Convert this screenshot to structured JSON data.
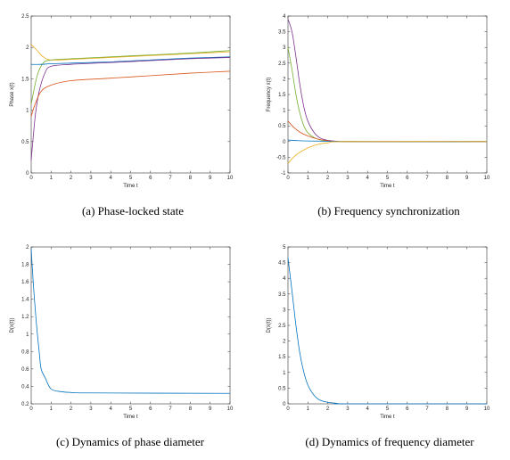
{
  "chart_data": [
    {
      "type": "line",
      "panel_id": "a",
      "caption": "(a)  Phase-locked state",
      "xlabel": "Time t",
      "ylabel": "Phase x(t)",
      "xlim": [
        0,
        10
      ],
      "ylim": [
        0,
        2.5
      ],
      "xticks": [
        "0",
        "1",
        "2",
        "3",
        "4",
        "5",
        "6",
        "7",
        "8",
        "9",
        "10"
      ],
      "yticks": [
        "0",
        "0.5",
        "1",
        "1.5",
        "2",
        "2.5"
      ],
      "grid": false,
      "series": [
        {
          "color": "#edb120",
          "points": [
            [
              0,
              2.05
            ],
            [
              0.3,
              1.95
            ],
            [
              0.6,
              1.85
            ],
            [
              1,
              1.8
            ],
            [
              2,
              1.81
            ],
            [
              4,
              1.84
            ],
            [
              6,
              1.87
            ],
            [
              8,
              1.9
            ],
            [
              10,
              1.93
            ]
          ]
        },
        {
          "color": "#77ac30",
          "points": [
            [
              0,
              1.1
            ],
            [
              0.3,
              1.55
            ],
            [
              0.6,
              1.75
            ],
            [
              1,
              1.8
            ],
            [
              2,
              1.82
            ],
            [
              4,
              1.85
            ],
            [
              6,
              1.88
            ],
            [
              8,
              1.91
            ],
            [
              10,
              1.95
            ]
          ]
        },
        {
          "color": "#0072bd",
          "points": [
            [
              0,
              1.73
            ],
            [
              0.5,
              1.73
            ],
            [
              1,
              1.74
            ],
            [
              2,
              1.75
            ],
            [
              4,
              1.77
            ],
            [
              6,
              1.8
            ],
            [
              8,
              1.83
            ],
            [
              10,
              1.85
            ]
          ]
        },
        {
          "color": "#7e2f8e",
          "points": [
            [
              0,
              0.2
            ],
            [
              0.2,
              0.9
            ],
            [
              0.4,
              1.3
            ],
            [
              0.7,
              1.6
            ],
            [
              1,
              1.7
            ],
            [
              2,
              1.73
            ],
            [
              4,
              1.76
            ],
            [
              6,
              1.79
            ],
            [
              8,
              1.82
            ],
            [
              10,
              1.84
            ]
          ]
        },
        {
          "color": "#d95319",
          "points": [
            [
              0,
              0.9
            ],
            [
              0.2,
              1.1
            ],
            [
              0.5,
              1.3
            ],
            [
              1,
              1.4
            ],
            [
              2,
              1.47
            ],
            [
              4,
              1.51
            ],
            [
              6,
              1.55
            ],
            [
              8,
              1.59
            ],
            [
              10,
              1.62
            ]
          ]
        }
      ]
    },
    {
      "type": "line",
      "panel_id": "b",
      "caption": "(b)  Frequency synchronization",
      "xlabel": "Time t",
      "ylabel": "Frequency ẋ(t)",
      "xlim": [
        0,
        10
      ],
      "ylim": [
        -1,
        4
      ],
      "xticks": [
        "0",
        "1",
        "2",
        "3",
        "4",
        "5",
        "6",
        "7",
        "8",
        "9",
        "10"
      ],
      "yticks": [
        "-1",
        "-0.5",
        "0",
        "0.5",
        "1",
        "1.5",
        "2",
        "2.5",
        "3",
        "3.5",
        "4"
      ],
      "grid": false,
      "series": [
        {
          "color": "#7e2f8e",
          "points": [
            [
              0,
              3.9
            ],
            [
              0.2,
              3.5
            ],
            [
              0.4,
              2.7
            ],
            [
              0.6,
              1.8
            ],
            [
              0.8,
              1.1
            ],
            [
              1,
              0.65
            ],
            [
              1.3,
              0.3
            ],
            [
              1.6,
              0.12
            ],
            [
              2,
              0.04
            ],
            [
              2.5,
              0.01
            ],
            [
              3,
              0
            ],
            [
              10,
              0
            ]
          ]
        },
        {
          "color": "#77ac30",
          "points": [
            [
              0,
              3.0
            ],
            [
              0.2,
              2.3
            ],
            [
              0.4,
              1.5
            ],
            [
              0.6,
              0.9
            ],
            [
              0.8,
              0.5
            ],
            [
              1,
              0.28
            ],
            [
              1.4,
              0.1
            ],
            [
              2,
              0.02
            ],
            [
              3,
              0
            ],
            [
              10,
              0
            ]
          ]
        },
        {
          "color": "#d95319",
          "points": [
            [
              0,
              0.65
            ],
            [
              0.3,
              0.45
            ],
            [
              0.6,
              0.3
            ],
            [
              1,
              0.18
            ],
            [
              1.5,
              0.08
            ],
            [
              2,
              0.03
            ],
            [
              3,
              0
            ],
            [
              10,
              0
            ]
          ]
        },
        {
          "color": "#0072bd",
          "points": [
            [
              0,
              0.05
            ],
            [
              0.5,
              0.03
            ],
            [
              1,
              0.02
            ],
            [
              2,
              0.01
            ],
            [
              3,
              0
            ],
            [
              10,
              0
            ]
          ]
        },
        {
          "color": "#edb120",
          "points": [
            [
              0,
              -0.7
            ],
            [
              0.2,
              -0.55
            ],
            [
              0.5,
              -0.38
            ],
            [
              1,
              -0.2
            ],
            [
              1.5,
              -0.09
            ],
            [
              2,
              -0.04
            ],
            [
              3,
              0
            ],
            [
              10,
              0
            ]
          ]
        }
      ]
    },
    {
      "type": "line",
      "panel_id": "c",
      "caption": "(c)  Dynamics of phase diameter",
      "xlabel": "Time t",
      "ylabel": "D(x(t))",
      "xlim": [
        0,
        10
      ],
      "ylim": [
        0.2,
        2
      ],
      "xticks": [
        "0",
        "1",
        "2",
        "3",
        "4",
        "5",
        "6",
        "7",
        "8",
        "9",
        "10"
      ],
      "yticks": [
        "0.2",
        "0.4",
        "0.6",
        "0.8",
        "1",
        "1.2",
        "1.4",
        "1.6",
        "1.8",
        "2"
      ],
      "grid": false,
      "series": [
        {
          "color": "#0072bd",
          "points": [
            [
              0,
              1.98
            ],
            [
              0.1,
              1.6
            ],
            [
              0.25,
              1.15
            ],
            [
              0.4,
              0.8
            ],
            [
              0.5,
              0.6
            ],
            [
              0.7,
              0.5
            ],
            [
              1,
              0.37
            ],
            [
              1.5,
              0.34
            ],
            [
              2,
              0.33
            ],
            [
              3,
              0.325
            ],
            [
              10,
              0.32
            ]
          ]
        }
      ]
    },
    {
      "type": "line",
      "panel_id": "d",
      "caption": "(d)  Dynamics of frequency diameter",
      "xlabel": "Time t",
      "ylabel": "D(ẋ(t))",
      "xlim": [
        0,
        10
      ],
      "ylim": [
        0,
        5
      ],
      "xticks": [
        "0",
        "1",
        "2",
        "3",
        "4",
        "5",
        "6",
        "7",
        "8",
        "9",
        "10"
      ],
      "yticks": [
        "0",
        "0.5",
        "1",
        "1.5",
        "2",
        "2.5",
        "3",
        "3.5",
        "4",
        "4.5",
        "5"
      ],
      "grid": false,
      "series": [
        {
          "color": "#0072bd",
          "points": [
            [
              0,
              4.65
            ],
            [
              0.2,
              3.6
            ],
            [
              0.4,
              2.5
            ],
            [
              0.6,
              1.6
            ],
            [
              0.8,
              1.0
            ],
            [
              1,
              0.6
            ],
            [
              1.3,
              0.28
            ],
            [
              1.6,
              0.12
            ],
            [
              2,
              0.05
            ],
            [
              2.5,
              0.015
            ],
            [
              3,
              0
            ],
            [
              10,
              0
            ]
          ]
        }
      ]
    }
  ]
}
